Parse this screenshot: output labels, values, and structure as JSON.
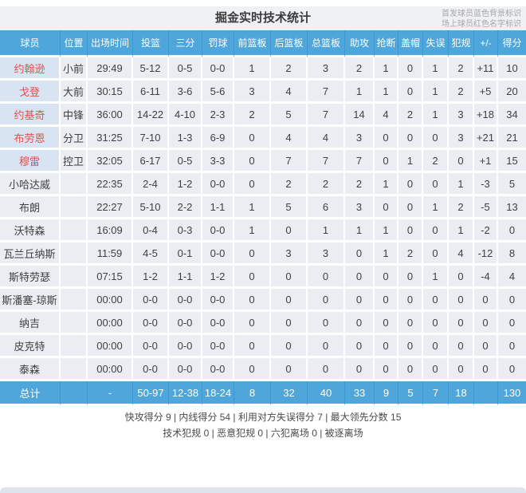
{
  "page": {
    "title": "掘金实时技术统计",
    "legend": {
      "line1": "首发球员蓝色背景标识",
      "line2": "场上球员红色名字标识"
    }
  },
  "table": {
    "columns": [
      "球员",
      "位置",
      "出场时间",
      "投篮",
      "三分",
      "罚球",
      "前篮板",
      "后篮板",
      "总篮板",
      "助攻",
      "抢断",
      "盖帽",
      "失误",
      "犯规",
      "+/-",
      "得分"
    ],
    "players": [
      {
        "name": "约翰逊",
        "starter": true,
        "red_name": true,
        "position": "小前",
        "time": "29:49",
        "values": [
          "5-12",
          "0-5",
          "0-0",
          "1",
          "2",
          "3",
          "2",
          "1",
          "0",
          "1",
          "2",
          "+11",
          "10"
        ]
      },
      {
        "name": "戈登",
        "starter": true,
        "red_name": true,
        "position": "大前",
        "time": "30:15",
        "values": [
          "6-11",
          "3-6",
          "5-6",
          "3",
          "4",
          "7",
          "1",
          "1",
          "0",
          "1",
          "2",
          "+5",
          "20"
        ]
      },
      {
        "name": "约基奇",
        "starter": true,
        "red_name": true,
        "position": "中锋",
        "time": "36:00",
        "values": [
          "14-22",
          "4-10",
          "2-3",
          "2",
          "5",
          "7",
          "14",
          "4",
          "2",
          "1",
          "3",
          "+18",
          "34"
        ]
      },
      {
        "name": "布劳恩",
        "starter": true,
        "red_name": true,
        "position": "分卫",
        "time": "31:25",
        "values": [
          "7-10",
          "1-3",
          "6-9",
          "0",
          "4",
          "4",
          "3",
          "0",
          "0",
          "0",
          "3",
          "+21",
          "21"
        ]
      },
      {
        "name": "穆雷",
        "starter": true,
        "red_name": true,
        "position": "控卫",
        "time": "32:05",
        "values": [
          "6-17",
          "0-5",
          "3-3",
          "0",
          "7",
          "7",
          "7",
          "0",
          "1",
          "2",
          "0",
          "+1",
          "15"
        ]
      },
      {
        "name": "小哈达威",
        "starter": false,
        "red_name": false,
        "position": "",
        "time": "22:35",
        "values": [
          "2-4",
          "1-2",
          "0-0",
          "0",
          "2",
          "2",
          "2",
          "1",
          "0",
          "0",
          "1",
          "-3",
          "5"
        ]
      },
      {
        "name": "布朗",
        "starter": false,
        "red_name": false,
        "position": "",
        "time": "22:27",
        "values": [
          "5-10",
          "2-2",
          "1-1",
          "1",
          "5",
          "6",
          "3",
          "0",
          "0",
          "1",
          "2",
          "-5",
          "13"
        ]
      },
      {
        "name": "沃特森",
        "starter": false,
        "red_name": false,
        "position": "",
        "time": "16:09",
        "values": [
          "0-4",
          "0-3",
          "0-0",
          "1",
          "0",
          "1",
          "1",
          "1",
          "0",
          "0",
          "1",
          "-2",
          "0"
        ]
      },
      {
        "name": "瓦兰丘纳斯",
        "starter": false,
        "red_name": false,
        "position": "",
        "time": "11:59",
        "values": [
          "4-5",
          "0-1",
          "0-0",
          "0",
          "3",
          "3",
          "0",
          "1",
          "2",
          "0",
          "4",
          "-12",
          "8"
        ]
      },
      {
        "name": "斯特劳瑟",
        "starter": false,
        "red_name": false,
        "position": "",
        "time": "07:15",
        "values": [
          "1-2",
          "1-1",
          "1-2",
          "0",
          "0",
          "0",
          "0",
          "0",
          "0",
          "1",
          "0",
          "-4",
          "4"
        ]
      },
      {
        "name": "斯潘塞-琼斯",
        "starter": false,
        "red_name": false,
        "position": "",
        "time": "00:00",
        "values": [
          "0-0",
          "0-0",
          "0-0",
          "0",
          "0",
          "0",
          "0",
          "0",
          "0",
          "0",
          "0",
          "0",
          "0"
        ]
      },
      {
        "name": "纳吉",
        "starter": false,
        "red_name": false,
        "position": "",
        "time": "00:00",
        "values": [
          "0-0",
          "0-0",
          "0-0",
          "0",
          "0",
          "0",
          "0",
          "0",
          "0",
          "0",
          "0",
          "0",
          "0"
        ]
      },
      {
        "name": "皮克特",
        "starter": false,
        "red_name": false,
        "position": "",
        "time": "00:00",
        "values": [
          "0-0",
          "0-0",
          "0-0",
          "0",
          "0",
          "0",
          "0",
          "0",
          "0",
          "0",
          "0",
          "0",
          "0"
        ]
      },
      {
        "name": "泰森",
        "starter": false,
        "red_name": false,
        "position": "",
        "time": "00:00",
        "values": [
          "0-0",
          "0-0",
          "0-0",
          "0",
          "0",
          "0",
          "0",
          "0",
          "0",
          "0",
          "0",
          "0",
          "0"
        ]
      }
    ],
    "total": {
      "name": "总计",
      "position": "",
      "time": "-",
      "values": [
        "50-97",
        "12-38",
        "18-24",
        "8",
        "32",
        "40",
        "33",
        "9",
        "5",
        "7",
        "18",
        "",
        "130"
      ]
    }
  },
  "summary": {
    "line1": "快攻得分 9 | 内线得分 54 | 利用对方失误得分 7 | 最大领先分数 15",
    "line2": "技术犯规 0 | 恶意犯规 0 | 六犯离场 0 | 被逐离场"
  },
  "colors": {
    "header_blue": "#4ea6db",
    "header_separator": "#3d97d0",
    "row_gray": "#ebedf2",
    "starter_cell_blue": "#d9e4f2",
    "on_court_name_red": "#e0504f"
  }
}
